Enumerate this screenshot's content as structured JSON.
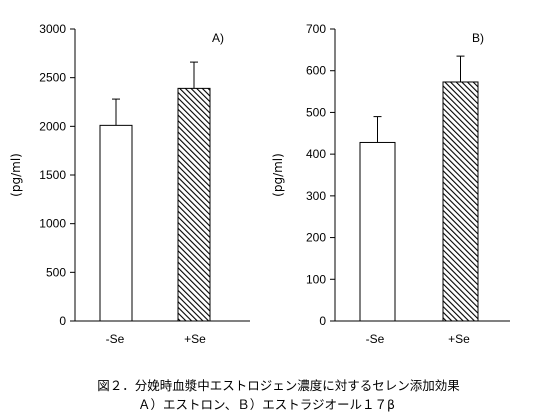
{
  "chart_data": [
    {
      "type": "bar",
      "panel_label": "A)",
      "ylabel": "(pg/ml)",
      "categories": [
        "-Se",
        "+Se"
      ],
      "values": [
        2010,
        2390
      ],
      "error_upper": [
        270,
        270
      ],
      "ylim": [
        0,
        3000
      ],
      "yticks": [
        0,
        500,
        1000,
        1500,
        2000,
        2500,
        3000
      ],
      "fills": [
        "white",
        "hatched"
      ],
      "grid": false,
      "legend": "none"
    },
    {
      "type": "bar",
      "panel_label": "B)",
      "ylabel": "(pg/ml)",
      "categories": [
        "-Se",
        "+Se"
      ],
      "values": [
        428,
        573
      ],
      "error_upper": [
        62,
        62
      ],
      "ylim": [
        0,
        700
      ],
      "yticks": [
        0,
        100,
        200,
        300,
        400,
        500,
        600,
        700
      ],
      "fills": [
        "white",
        "hatched"
      ],
      "grid": false,
      "legend": "none"
    }
  ],
  "caption": {
    "line1": "図２．分娩時血漿中エストロジェン濃度に対するセレン添加効果",
    "line2": "Ａ）エストロン、Ｂ）エストラジオール１７β"
  }
}
